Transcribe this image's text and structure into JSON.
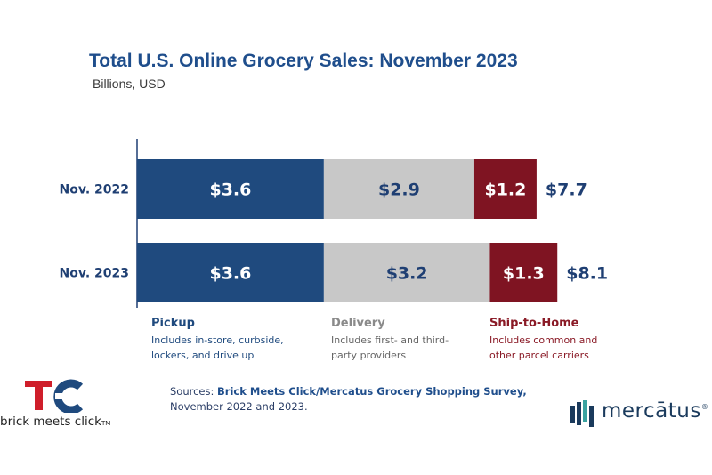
{
  "title": "Total U.S. Online Grocery Sales: November 2023",
  "subtitle": "Billions, USD",
  "colors": {
    "pickup": "#1f4a7e",
    "delivery": "#c8c8c8",
    "ship": "#7f1422",
    "title": "#1f4e8c",
    "total": "#1f3f73"
  },
  "chart_data": {
    "type": "bar",
    "orientation": "horizontal",
    "stacked": true,
    "categories": [
      "Nov. 2022",
      "Nov. 2023"
    ],
    "series": [
      {
        "name": "Pickup",
        "values": [
          3.6,
          3.6
        ],
        "labels": [
          "$3.6",
          "$3.6"
        ]
      },
      {
        "name": "Delivery",
        "values": [
          2.9,
          3.2
        ],
        "labels": [
          "$2.9",
          "$3.2"
        ]
      },
      {
        "name": "Ship-to-Home",
        "values": [
          1.2,
          1.3
        ],
        "labels": [
          "$1.2",
          "$1.3"
        ]
      }
    ],
    "totals": [
      7.7,
      8.1
    ],
    "total_labels": [
      "$7.7",
      "$8.1"
    ],
    "title": "Total U.S. Online Grocery Sales: November 2023",
    "subtitle": "Billions, USD"
  },
  "legend": [
    {
      "name": "Pickup",
      "desc_lines": [
        "Includes in-store, curbside,",
        "lockers, and drive up"
      ]
    },
    {
      "name": "Delivery",
      "desc_lines": [
        "Includes first- and third-",
        "party providers"
      ]
    },
    {
      "name": "Ship-to-Home",
      "desc_lines": [
        "Includes common and",
        "other parcel carriers"
      ]
    }
  ],
  "sources": {
    "prefix": "Sources: ",
    "bold": "Brick Meets Click/Mercatus Grocery Shopping Survey,",
    "line2": "November 2022 and 2023."
  },
  "logos": {
    "left_text": "brick meets click",
    "left_tm": "TM",
    "right_text": "mercātus",
    "right_reg": "®"
  }
}
